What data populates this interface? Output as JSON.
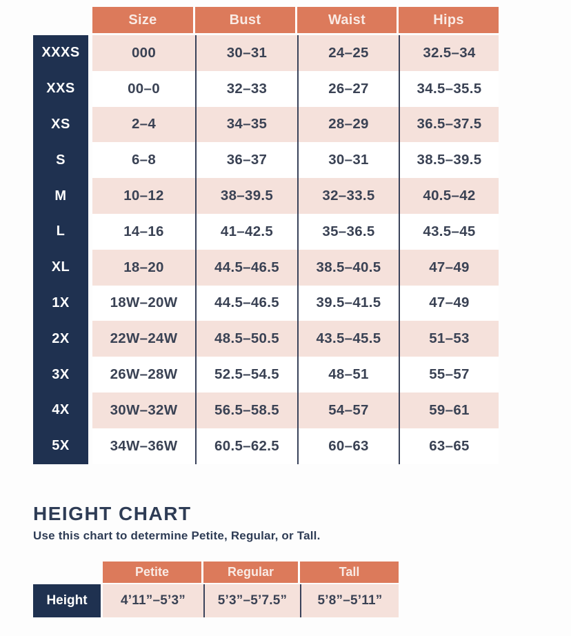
{
  "size_chart": {
    "columns": [
      "Size",
      "Bust",
      "Waist",
      "Hips"
    ],
    "rows": [
      {
        "label": "XXXS",
        "size": "000",
        "bust": "30–31",
        "waist": "24–25",
        "hips": "32.5–34"
      },
      {
        "label": "XXS",
        "size": "00–0",
        "bust": "32–33",
        "waist": "26–27",
        "hips": "34.5–35.5"
      },
      {
        "label": "XS",
        "size": "2–4",
        "bust": "34–35",
        "waist": "28–29",
        "hips": "36.5–37.5"
      },
      {
        "label": "S",
        "size": "6–8",
        "bust": "36–37",
        "waist": "30–31",
        "hips": "38.5–39.5"
      },
      {
        "label": "M",
        "size": "10–12",
        "bust": "38–39.5",
        "waist": "32–33.5",
        "hips": "40.5–42"
      },
      {
        "label": "L",
        "size": "14–16",
        "bust": "41–42.5",
        "waist": "35–36.5",
        "hips": "43.5–45"
      },
      {
        "label": "XL",
        "size": "18–20",
        "bust": "44.5–46.5",
        "waist": "38.5–40.5",
        "hips": "47–49"
      },
      {
        "label": "1X",
        "size": "18W–20W",
        "bust": "44.5–46.5",
        "waist": "39.5–41.5",
        "hips": "47–49"
      },
      {
        "label": "2X",
        "size": "22W–24W",
        "bust": "48.5–50.5",
        "waist": "43.5–45.5",
        "hips": "51–53"
      },
      {
        "label": "3X",
        "size": "26W–28W",
        "bust": "52.5–54.5",
        "waist": "48–51",
        "hips": "55–57"
      },
      {
        "label": "4X",
        "size": "30W–32W",
        "bust": "56.5–58.5",
        "waist": "54–57",
        "hips": "59–61"
      },
      {
        "label": "5X",
        "size": "34W–36W",
        "bust": "60.5–62.5",
        "waist": "60–63",
        "hips": "63–65"
      }
    ]
  },
  "height_chart": {
    "title": "HEIGHT CHART",
    "subtitle": "Use this chart to determine Petite, Regular, or Tall.",
    "columns": [
      "Petite",
      "Regular",
      "Tall"
    ],
    "row_label": "Height",
    "values": [
      "4’11”–5’3”",
      "5’3”–5’7.5”",
      "5’8”–5’11”"
    ]
  },
  "colors": {
    "accent_salmon": "#DC7A5B",
    "navy": "#1F3150",
    "row_pink": "#F5E1DB",
    "row_white": "#FFFFFF",
    "value_text": "#3A4254",
    "header_text": "#F9EAE4",
    "separator": "#39425A"
  }
}
